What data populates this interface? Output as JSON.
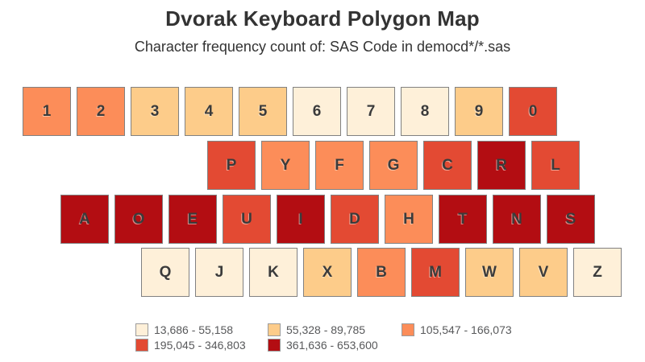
{
  "title": "Dvorak Keyboard Polygon Map",
  "subtitle": "Character frequency count of: SAS Code in democd*/*.sas",
  "palette": {
    "bin1": "#FEF0D9",
    "bin2": "#FDCC8A",
    "bin3": "#FC8D59",
    "bin4": "#E34A33",
    "bin5": "#B30D12"
  },
  "legend": {
    "items": [
      {
        "label": "13,686 - 55,158",
        "bin": 1
      },
      {
        "label": "55,328 - 89,785",
        "bin": 2
      },
      {
        "label": "105,547 - 166,073",
        "bin": 3
      },
      {
        "label": "195,045 - 346,803",
        "bin": 4
      },
      {
        "label": "361,636 - 653,600",
        "bin": 5
      }
    ]
  },
  "chart_data": {
    "type": "heatmap",
    "title": "Dvorak Keyboard Polygon Map",
    "subtitle": "Character frequency count of: SAS Code in democd*/*.sas",
    "layout": "dvorak-keyboard",
    "legend_position": "bottom",
    "bins": [
      {
        "bin": 1,
        "range": "13,686 - 55,158",
        "color": "#FEF0D9"
      },
      {
        "bin": 2,
        "range": "55,328 - 89,785",
        "color": "#FDCC8A"
      },
      {
        "bin": 3,
        "range": "105,547 - 166,073",
        "color": "#FC8D59"
      },
      {
        "bin": 4,
        "range": "195,045 - 346,803",
        "color": "#E34A33"
      },
      {
        "bin": 5,
        "range": "361,636 - 653,600",
        "color": "#B30D12"
      }
    ],
    "rows": [
      {
        "keys": [
          "1",
          "2",
          "3",
          "4",
          "5",
          "6",
          "7",
          "8",
          "9",
          "0"
        ],
        "bins": [
          3,
          3,
          2,
          2,
          2,
          1,
          1,
          1,
          2,
          4
        ]
      },
      {
        "keys": [
          "P",
          "Y",
          "F",
          "G",
          "C",
          "R",
          "L"
        ],
        "bins": [
          4,
          3,
          3,
          3,
          4,
          5,
          4
        ]
      },
      {
        "keys": [
          "A",
          "O",
          "E",
          "U",
          "I",
          "D",
          "H",
          "T",
          "N",
          "S"
        ],
        "bins": [
          5,
          5,
          5,
          4,
          5,
          4,
          3,
          5,
          5,
          5
        ]
      },
      {
        "keys": [
          "Q",
          "J",
          "K",
          "X",
          "B",
          "M",
          "W",
          "V",
          "Z"
        ],
        "bins": [
          1,
          1,
          1,
          2,
          3,
          4,
          2,
          2,
          1
        ]
      }
    ]
  }
}
